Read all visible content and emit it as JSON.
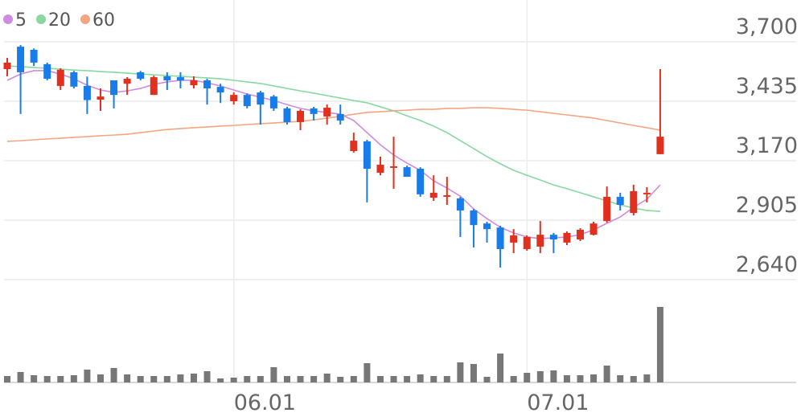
{
  "chart_data": {
    "type": "candlestick",
    "categories": [
      null,
      null,
      null,
      null,
      null,
      null,
      null,
      null,
      null,
      null,
      null,
      null,
      null,
      null,
      null,
      null,
      null,
      "06.01",
      null,
      null,
      null,
      null,
      null,
      null,
      null,
      null,
      null,
      null,
      null,
      null,
      null,
      null,
      null,
      null,
      null,
      null,
      null,
      null,
      null,
      "07.01",
      null,
      null,
      null,
      null,
      null,
      null,
      null,
      null,
      null,
      null
    ],
    "open": [
      3578,
      3678,
      3664,
      3600,
      3503,
      3564,
      3503,
      3442,
      3528,
      3513,
      3564,
      3463,
      3546,
      3542,
      3506,
      3528,
      3499,
      3435,
      3463,
      3474,
      3456,
      3403,
      3342,
      3403,
      3367,
      3378,
      3213,
      3256,
      3116,
      3138,
      3141,
      3134,
      3005,
      3009,
      3002,
      2948,
      2890,
      2872,
      2805,
      2776,
      2787,
      2840,
      2805,
      2819,
      2840,
      2901,
      3009,
      2937,
      3020,
      3199
    ],
    "high": [
      3628,
      3685,
      3670,
      3607,
      3582,
      3570,
      3545,
      3492,
      3528,
      3542,
      3570,
      3549,
      3564,
      3564,
      3546,
      3535,
      3513,
      3474,
      3470,
      3481,
      3463,
      3410,
      3399,
      3410,
      3420,
      3420,
      3295,
      3263,
      3188,
      3277,
      3148,
      3141,
      3105,
      3098,
      3009,
      2955,
      2898,
      2880,
      2865,
      2837,
      2901,
      2848,
      2855,
      2869,
      2898,
      3055,
      3027,
      3063,
      3052,
      3578
    ],
    "low": [
      3546,
      3378,
      3592,
      3528,
      3485,
      3492,
      3378,
      3392,
      3403,
      3463,
      3528,
      3463,
      3485,
      3492,
      3492,
      3420,
      3427,
      3420,
      3403,
      3331,
      3392,
      3331,
      3306,
      3349,
      3331,
      3331,
      3206,
      2984,
      3105,
      3045,
      3098,
      3009,
      2991,
      2973,
      2830,
      2783,
      2805,
      2694,
      2758,
      2769,
      2758,
      2758,
      2794,
      2812,
      2837,
      2894,
      2948,
      2926,
      2984,
      3199
    ],
    "close": [
      3607,
      3564,
      3607,
      3535,
      3575,
      3500,
      3440,
      3456,
      3463,
      3535,
      3535,
      3542,
      3528,
      3528,
      3528,
      3492,
      3474,
      3463,
      3413,
      3420,
      3403,
      3342,
      3392,
      3378,
      3406,
      3349,
      3259,
      3134,
      3152,
      3145,
      3098,
      3020,
      3027,
      3016,
      2948,
      2883,
      2865,
      2776,
      2837,
      2830,
      2840,
      2819,
      2848,
      2862,
      2890,
      3009,
      2973,
      3034,
      3027,
      3277
    ],
    "up_color": "#e0301e",
    "down_color": "#1a7ce8",
    "series": [
      {
        "name": "5",
        "color": "#d08be0",
        "values": [
          3528,
          3556,
          3571,
          3571,
          3556,
          3535,
          3506,
          3485,
          3474,
          3481,
          3492,
          3510,
          3521,
          3528,
          3528,
          3517,
          3503,
          3485,
          3467,
          3453,
          3438,
          3420,
          3403,
          3392,
          3385,
          3377,
          3349,
          3295,
          3241,
          3195,
          3159,
          3127,
          3080,
          3048,
          3012,
          2955,
          2912,
          2873,
          2848,
          2830,
          2823,
          2826,
          2830,
          2840,
          2862,
          2891,
          2919,
          2962,
          2998,
          3062
        ]
      },
      {
        "name": "20",
        "color": "#88d8a0",
        "values": [
          3592,
          3589,
          3585,
          3582,
          3578,
          3574,
          3571,
          3567,
          3564,
          3560,
          3556,
          3553,
          3549,
          3546,
          3542,
          3539,
          3535,
          3528,
          3521,
          3514,
          3503,
          3492,
          3481,
          3471,
          3460,
          3449,
          3438,
          3428,
          3410,
          3392,
          3370,
          3349,
          3324,
          3295,
          3259,
          3224,
          3188,
          3156,
          3127,
          3105,
          3084,
          3062,
          3045,
          3027,
          3009,
          2991,
          2973,
          2959,
          2948,
          2944
        ]
      },
      {
        "name": "60",
        "color": "#f4a582",
        "values": [
          3256,
          3259,
          3263,
          3267,
          3270,
          3274,
          3277,
          3281,
          3284,
          3288,
          3295,
          3302,
          3309,
          3313,
          3317,
          3320,
          3324,
          3327,
          3331,
          3335,
          3338,
          3342,
          3345,
          3352,
          3360,
          3367,
          3377,
          3385,
          3388,
          3392,
          3395,
          3399,
          3399,
          3403,
          3403,
          3406,
          3406,
          3403,
          3399,
          3395,
          3388,
          3381,
          3374,
          3367,
          3360,
          3349,
          3338,
          3327,
          3317,
          3306
        ]
      }
    ],
    "ylim": [
      2640,
      3886
    ],
    "yticks": [
      {
        "value": 2640,
        "label": "2,640"
      },
      {
        "value": 2905,
        "label": "2,905"
      },
      {
        "value": 3170,
        "label": "3,170"
      },
      {
        "value": 3435,
        "label": "3,435"
      },
      {
        "value": 3700,
        "label": "3,700"
      }
    ],
    "grid": true,
    "volume": {
      "color": "#777777",
      "ylim": [
        0,
        120
      ],
      "values": [
        8,
        13,
        9,
        8,
        8,
        9,
        16,
        10,
        18,
        10,
        8,
        8,
        8,
        10,
        11,
        14,
        5,
        6,
        8,
        8,
        19,
        8,
        8,
        8,
        11,
        7,
        8,
        24,
        8,
        8,
        8,
        10,
        8,
        8,
        25,
        23,
        7,
        36,
        8,
        12,
        14,
        15,
        9,
        9,
        10,
        21,
        9,
        8,
        10,
        94
      ]
    }
  }
}
